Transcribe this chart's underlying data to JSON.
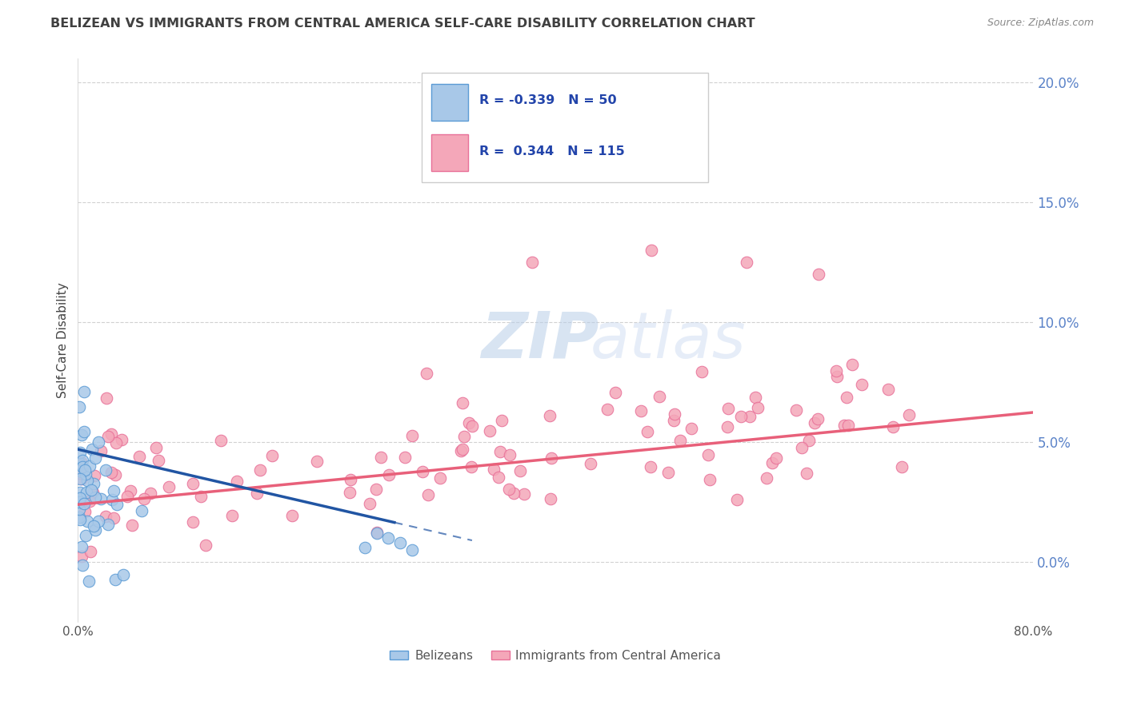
{
  "title": "BELIZEAN VS IMMIGRANTS FROM CENTRAL AMERICA SELF-CARE DISABILITY CORRELATION CHART",
  "source": "Source: ZipAtlas.com",
  "ylabel": "Self-Care Disability",
  "xlim": [
    0.0,
    0.8
  ],
  "ylim": [
    -0.025,
    0.21
  ],
  "yticks": [
    0.0,
    0.05,
    0.1,
    0.15,
    0.2
  ],
  "ytick_labels": [
    "0.0%",
    "5.0%",
    "10.0%",
    "15.0%",
    "20.0%"
  ],
  "xticks": [
    0.0,
    0.1,
    0.2,
    0.3,
    0.4,
    0.5,
    0.6,
    0.7,
    0.8
  ],
  "xtick_labels": [
    "0.0%",
    "",
    "",
    "",
    "",
    "",
    "",
    "",
    "80.0%"
  ],
  "legend_labels": [
    "Belizeans",
    "Immigrants from Central America"
  ],
  "R_blue": -0.339,
  "N_blue": 50,
  "R_pink": 0.344,
  "N_pink": 115,
  "blue_color": "#A8C8E8",
  "blue_edge": "#5B9BD5",
  "pink_color": "#F4A7B9",
  "pink_edge": "#E87098",
  "trend_blue": "#2155A3",
  "trend_pink": "#E8607A",
  "background": "#FFFFFF",
  "grid_color": "#CCCCCC",
  "title_color": "#404040",
  "tick_color_right": "#5A82C8",
  "watermark_zip_color": "#C8D8F0",
  "watermark_atlas_color": "#B0C8E8"
}
